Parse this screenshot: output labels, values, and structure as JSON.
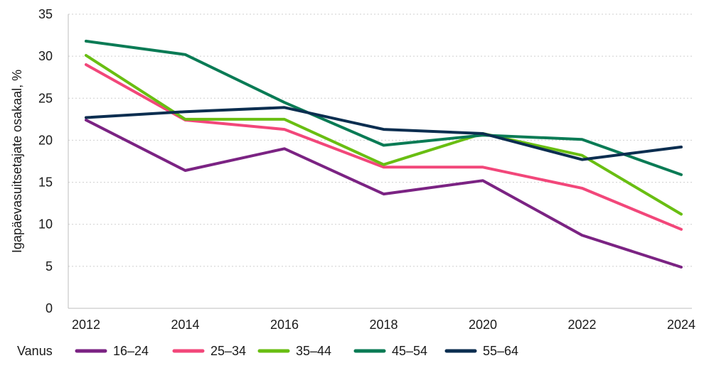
{
  "chart_data": {
    "type": "line",
    "title": "",
    "xlabel": "",
    "ylabel": "Igapäevasuitsetajate osakaal, %",
    "x": [
      "2012",
      "2014",
      "2016",
      "2018",
      "2020",
      "2022",
      "2024"
    ],
    "ylim": [
      0,
      35
    ],
    "yticks": [
      0,
      5,
      10,
      15,
      20,
      25,
      30,
      35
    ],
    "yticklabels": [
      "0",
      "5",
      "10",
      "15",
      "20",
      "25",
      "30",
      "35"
    ],
    "grid": true,
    "legend_title": "Vanus",
    "legend_position": "bottom",
    "series": [
      {
        "name": "16–24",
        "color": "#7b2383",
        "values": [
          22.4,
          16.4,
          19.0,
          13.6,
          15.2,
          8.7,
          4.9
        ]
      },
      {
        "name": "25–34",
        "color": "#f2477a",
        "values": [
          29.0,
          22.4,
          21.3,
          16.8,
          16.8,
          14.3,
          9.4
        ]
      },
      {
        "name": "35–44",
        "color": "#69be12",
        "values": [
          30.1,
          22.5,
          22.5,
          17.1,
          20.8,
          18.2,
          11.2
        ]
      },
      {
        "name": "45–54",
        "color": "#0a7b55",
        "values": [
          31.8,
          30.2,
          24.5,
          19.4,
          20.6,
          20.1,
          15.9
        ]
      },
      {
        "name": "55–64",
        "color": "#0b2e50",
        "values": [
          22.7,
          23.4,
          23.9,
          21.3,
          20.8,
          17.7,
          19.2
        ]
      }
    ]
  }
}
